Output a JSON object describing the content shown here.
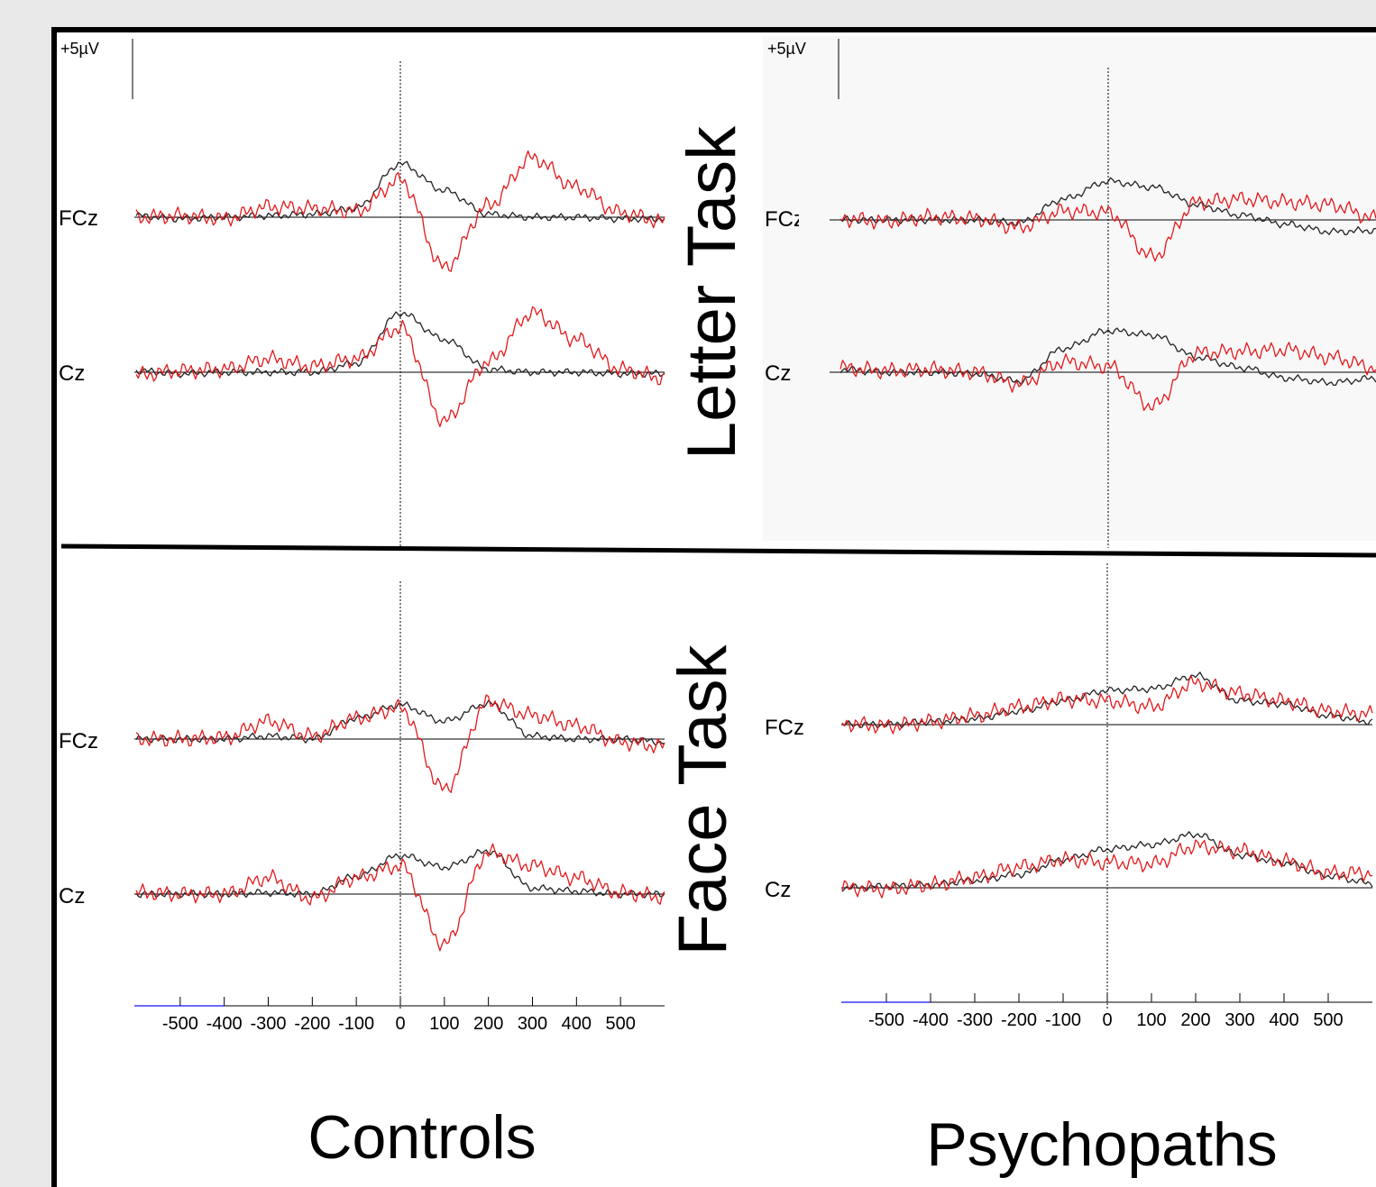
{
  "figure": {
    "scale_label": "+5µV",
    "row_labels": [
      "Letter Task",
      "Face Task"
    ],
    "column_labels": [
      "Controls",
      "Psychopaths"
    ],
    "colors": {
      "black_trace": "#222222",
      "red_trace": "#e3191c",
      "axis_blue": "#3a3aff",
      "frame": "#000000",
      "background": "#e9e9e9"
    }
  },
  "chart_data": [
    {
      "type": "line",
      "group": "Controls",
      "task": "Letter Task",
      "channels": [
        "FCz",
        "Cz"
      ],
      "xlabel": "",
      "ylabel": "",
      "xlim": [
        -600,
        600
      ],
      "x_ticks": [
        -500,
        -400,
        -300,
        -200,
        -100,
        0,
        100,
        200,
        300,
        400,
        500
      ],
      "x": [
        -600,
        -500,
        -400,
        -300,
        -200,
        -100,
        0,
        100,
        200,
        300,
        400,
        500,
        600
      ],
      "series": [
        {
          "channel": "FCz",
          "color": "black",
          "values": [
            0.1,
            -0.1,
            0.0,
            0.1,
            0.2,
            0.6,
            3.6,
            1.8,
            0.2,
            0.0,
            0.0,
            -0.1,
            -0.1
          ]
        },
        {
          "channel": "FCz",
          "color": "red",
          "values": [
            0.0,
            0.1,
            -0.1,
            0.7,
            0.6,
            0.4,
            2.5,
            -3.4,
            0.8,
            4.0,
            2.0,
            0.3,
            -0.3
          ]
        },
        {
          "channel": "Cz",
          "color": "black",
          "values": [
            0.1,
            -0.1,
            0.0,
            0.0,
            0.0,
            0.6,
            4.0,
            2.2,
            0.2,
            0.0,
            0.0,
            -0.1,
            -0.1
          ]
        },
        {
          "channel": "Cz",
          "color": "red",
          "values": [
            -0.2,
            0.1,
            0.2,
            0.9,
            0.4,
            0.9,
            3.0,
            -3.3,
            0.7,
            4.0,
            2.2,
            0.2,
            -0.4
          ]
        }
      ]
    },
    {
      "type": "line",
      "group": "Psychopaths",
      "task": "Letter Task",
      "channels": [
        "FCz",
        "Cz"
      ],
      "xlabel": "",
      "ylabel": "",
      "xlim": [
        -600,
        600
      ],
      "x_ticks": [
        -500,
        -400,
        -300,
        -200,
        -100,
        0,
        100,
        200,
        300,
        400,
        500
      ],
      "x": [
        -600,
        -500,
        -400,
        -300,
        -200,
        -100,
        0,
        100,
        200,
        300,
        400,
        500,
        600
      ],
      "series": [
        {
          "channel": "FCz",
          "color": "black",
          "values": [
            0.0,
            0.0,
            0.0,
            0.0,
            -0.2,
            1.4,
            2.6,
            2.2,
            1.0,
            0.3,
            -0.3,
            -0.8,
            -0.7
          ]
        },
        {
          "channel": "FCz",
          "color": "red",
          "values": [
            0.1,
            -0.1,
            0.2,
            0.1,
            -0.5,
            0.6,
            0.5,
            -2.5,
            1.2,
            1.4,
            1.2,
            1.0,
            0.1
          ]
        },
        {
          "channel": "Cz",
          "color": "black",
          "values": [
            0.2,
            0.0,
            0.0,
            -0.1,
            -0.6,
            1.6,
            2.8,
            2.5,
            1.0,
            0.3,
            -0.4,
            -0.7,
            -0.4
          ]
        },
        {
          "channel": "Cz",
          "color": "red",
          "values": [
            0.3,
            0.1,
            0.2,
            0.0,
            -0.8,
            0.7,
            0.4,
            -2.3,
            1.3,
            1.4,
            1.5,
            1.0,
            0.3
          ]
        }
      ]
    },
    {
      "type": "line",
      "group": "Controls",
      "task": "Face Task",
      "channels": [
        "FCz",
        "Cz"
      ],
      "xlabel": "",
      "ylabel": "",
      "xlim": [
        -600,
        600
      ],
      "x_ticks": [
        -500,
        -400,
        -300,
        -200,
        -100,
        0,
        100,
        200,
        300,
        400,
        500
      ],
      "x": [
        -600,
        -500,
        -400,
        -300,
        -200,
        -100,
        0,
        100,
        200,
        300,
        400,
        500,
        600
      ],
      "series": [
        {
          "channel": "FCz",
          "color": "black",
          "values": [
            0.0,
            0.0,
            0.0,
            0.2,
            0.0,
            1.4,
            2.3,
            1.2,
            2.4,
            0.2,
            0.0,
            0.0,
            -0.2
          ]
        },
        {
          "channel": "FCz",
          "color": "red",
          "values": [
            0.0,
            0.0,
            0.1,
            1.2,
            0.2,
            1.4,
            2.1,
            -3.4,
            2.5,
            1.6,
            0.9,
            -0.2,
            -0.5
          ]
        },
        {
          "channel": "Cz",
          "color": "black",
          "values": [
            0.0,
            0.0,
            0.0,
            0.1,
            0.0,
            1.2,
            2.6,
            1.8,
            2.9,
            0.4,
            0.2,
            0.0,
            0.0
          ]
        },
        {
          "channel": "Cz",
          "color": "red",
          "values": [
            0.1,
            0.0,
            0.0,
            1.1,
            -0.3,
            1.1,
            1.9,
            -3.4,
            2.8,
            1.9,
            1.1,
            0.1,
            -0.2
          ]
        }
      ]
    },
    {
      "type": "line",
      "group": "Psychopaths",
      "task": "Face Task",
      "channels": [
        "FCz",
        "Cz"
      ],
      "xlabel": "",
      "ylabel": "",
      "xlim": [
        -600,
        600
      ],
      "x_ticks": [
        -500,
        -400,
        -300,
        -200,
        -100,
        0,
        100,
        200,
        300,
        400,
        500
      ],
      "x": [
        -600,
        -500,
        -400,
        -300,
        -200,
        -100,
        0,
        100,
        200,
        300,
        400,
        500,
        600
      ],
      "series": [
        {
          "channel": "FCz",
          "color": "black",
          "values": [
            0.0,
            0.0,
            0.2,
            0.4,
            0.9,
            1.6,
            2.3,
            2.4,
            3.3,
            1.6,
            1.4,
            0.6,
            0.2
          ]
        },
        {
          "channel": "FCz",
          "color": "red",
          "values": [
            0.1,
            -0.1,
            0.2,
            0.6,
            1.2,
            1.7,
            1.6,
            1.2,
            2.8,
            2.1,
            1.6,
            0.9,
            0.7
          ]
        },
        {
          "channel": "Cz",
          "color": "black",
          "values": [
            0.0,
            0.1,
            0.2,
            0.5,
            0.9,
            1.9,
            2.6,
            2.9,
            3.6,
            2.2,
            1.7,
            0.8,
            0.3
          ]
        },
        {
          "channel": "Cz",
          "color": "red",
          "values": [
            0.0,
            -0.1,
            0.2,
            0.7,
            1.4,
            1.9,
            1.7,
            1.6,
            2.8,
            2.5,
            1.8,
            1.0,
            1.0
          ]
        }
      ]
    }
  ]
}
